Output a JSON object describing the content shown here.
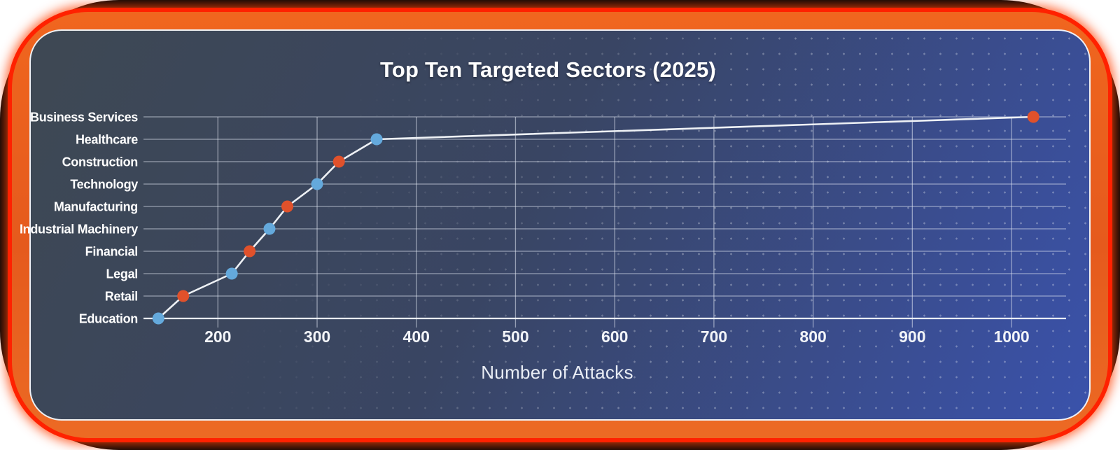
{
  "title": "Top Ten Targeted Sectors (2025)",
  "x_axis_title": "Number of Attacks",
  "chart_data": {
    "type": "line",
    "orientation": "horizontal-categories-on-y",
    "title": "Top Ten Targeted Sectors (2025)",
    "xlabel": "Number of Attacks",
    "ylabel": "",
    "categories": [
      "Business Services",
      "Healthcare",
      "Construction",
      "Technology",
      "Manufacturing",
      "Industrial Machinery",
      "Financial",
      "Legal",
      "Retail",
      "Education"
    ],
    "values": [
      1022,
      360,
      322,
      300,
      270,
      252,
      232,
      214,
      165,
      140
    ],
    "x_ticks": [
      200,
      300,
      400,
      500,
      600,
      700,
      800,
      900,
      1000
    ],
    "x_range": [
      125,
      1055
    ],
    "grid": true,
    "legend": "none",
    "marker_style": "circle",
    "marker_color_even_rows": "#e0512b",
    "marker_color_odd_rows": "#64a9dc",
    "line_color": "#eef1f5"
  },
  "colors": {
    "frame_outer": "#050505",
    "frame_glow_red": "#ff2100",
    "frame_orange": "#e85e1e",
    "card_border": "#ffffff",
    "card_gradient_start": "#3e4853",
    "card_gradient_end": "#3a52ab",
    "gridline": "rgba(228,234,244,0.55)",
    "axis_line": "rgba(242,245,250,0.95)",
    "text": "#ffffff"
  }
}
